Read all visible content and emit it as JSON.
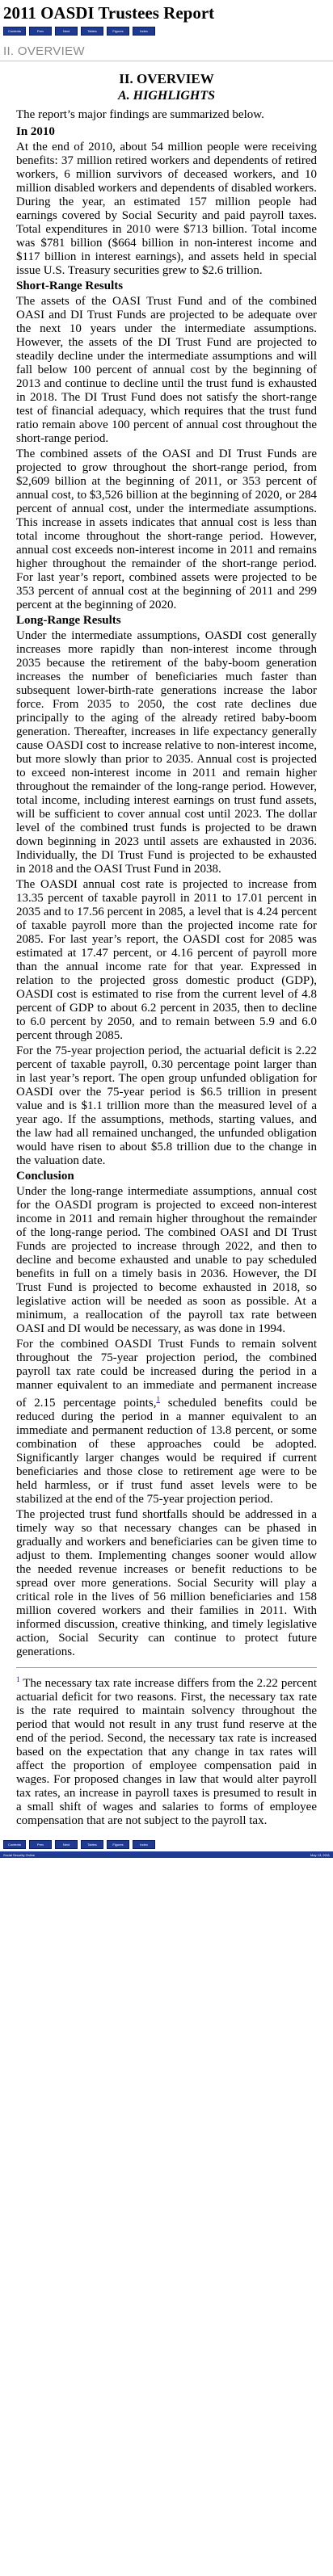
{
  "header": {
    "title": "2011 OASDI Trustees Report",
    "nav": [
      "Contents",
      "Prev",
      "Next",
      "Tables",
      "Figures",
      "Index"
    ]
  },
  "crumb": "II. OVERVIEW",
  "section": {
    "heading": "II. OVERVIEW",
    "subheading": "A. HIGHLIGHTS",
    "intro": "The report’s major findings are summarized below."
  },
  "topics": {
    "in2010": {
      "heading": "In 2010",
      "p1": "At the end of 2010, about 54 million people were receiving benefits: 37 million retired workers and dependents of retired workers, 6 million survivors of deceased workers, and 10 million disabled workers and dependents of disabled workers. During the year, an estimated 157 million people had earnings covered by Social Security and paid payroll taxes. Total expenditures in 2010 were $713 billion. Total income was $781 billion ($664 billion in non-interest income and $117 billion in interest earnings), and assets held in special issue U.S. Treasury securities grew to $2.6 trillion."
    },
    "short": {
      "heading": "Short-Range Results",
      "p1": "The assets of the OASI Trust Fund and of the combined OASI and DI Trust Funds are projected to be adequate over the next 10 years under the intermediate assumptions. However, the assets of the DI Trust Fund are projected to steadily decline under the intermediate assumptions and will fall below 100 percent of annual cost by the beginning of 2013 and continue to decline until the trust fund is exhausted in 2018. The DI Trust Fund does not satisfy the short-range test of financial adequacy, which requires that the trust fund ratio remain above 100 percent of annual cost throughout the short-range period.",
      "p2": "The combined assets of the OASI and DI Trust Funds are projected to grow throughout the short-range period, from $2,609 billion at the beginning of 2011, or 353 percent of annual cost, to $3,526 billion at the beginning of 2020, or 284 percent of annual cost, under the intermediate assumptions. This increase in assets indicates that annual cost is less than total income throughout the short-range period. However, annual cost exceeds non-interest income in 2011 and remains higher throughout the remainder of the short-range period. For last year’s report, combined assets were projected to be 353 percent of annual cost at the beginning of 2011 and 299 percent at the beginning of 2020."
    },
    "long": {
      "heading": "Long-Range Results",
      "p1": "Under the intermediate assumptions, OASDI cost generally increases more rapidly than non-interest income through 2035 because the retirement of the baby-boom generation increases the number of beneficiaries much faster than subsequent lower-birth-rate generations increase the labor force. From 2035 to 2050, the cost rate declines due principally to the aging of the already retired baby-boom generation. Thereafter, increases in life expectancy generally cause OASDI cost to increase relative to non-interest income, but more slowly than prior to 2035. Annual cost is projected to exceed non-interest income in 2011 and remain higher throughout the remainder of the long-range period. However, total income, including interest earnings on trust fund assets, will be sufficient to cover annual cost until 2023. The dollar level of the combined trust funds is projected to be drawn down beginning in 2023 until assets are exhausted in 2036. Individually, the DI Trust Fund is projected to be exhausted in 2018 and the OASI Trust Fund in 2038.",
      "p2": "The OASDI annual cost rate is projected to increase from 13.35 percent of taxable payroll in 2011 to 17.01 percent in 2035 and to 17.56 percent in 2085, a level that is 4.24 percent of taxable payroll more than the projected income rate for 2085. For last year’s report, the OASDI cost for 2085 was estimated at 17.47 percent, or 4.16 percent of payroll more than the annual income rate for that year. Expressed in relation to the projected gross domestic product (GDP), OASDI cost is estimated to rise from the current level of 4.8 percent of GDP to about 6.2 percent in 2035, then to decline to 6.0 percent by 2050, and to remain between 5.9 and 6.0 percent through 2085.",
      "p3": "For the 75-year projection period, the actuarial deficit is 2.22 percent of taxable payroll, 0.30 percentage point larger than in last year’s report. The open group unfunded obligation for OASDI over the 75-year period is $6.5 trillion in present value and is $1.1 trillion more than the measured level of a year ago. If the assumptions, methods, starting values, and the law had all remained unchanged, the unfunded obligation would have risen to about $5.8 trillion due to the change in the valuation date."
    },
    "conclusion": {
      "heading": "Conclusion",
      "p1": "Under the long-range intermediate assumptions, annual cost for the OASDI program is projected to exceed non-interest income in 2011 and remain higher throughout the remainder of the long-range period. The combined OASI and DI Trust Funds are projected to increase through 2022, and then to decline and become exhausted and unable to pay scheduled benefits in full on a timely basis in 2036. However, the DI Trust Fund is projected to become exhausted in 2018, so legislative action will be needed as soon as possible. At a minimum, a reallocation of the payroll tax rate between OASI and DI would be necessary, as was done in 1994.",
      "p2a": "For the combined OASDI Trust Funds to remain solvent throughout the 75-year projection period, the combined payroll tax rate could be increased during the period in a manner equivalent to an immediate and permanent increase of 2.15 percentage points,",
      "fn_ref": "1",
      "p2b": " scheduled benefits could be reduced during the period in a manner equivalent to an immediate and permanent reduction of 13.8 percent, or some combination of these approaches could be adopted. Significantly larger changes would be required if current beneficiaries and those close to retirement age were to be held harmless, or if trust fund asset levels were to be stabilized at the end of the 75-year projection period.",
      "p3": "The projected trust fund shortfalls should be addressed in a timely way so that necessary changes can be phased in gradually and workers and beneficiaries can be given time to adjust to them. Implementing changes sooner would allow the needed revenue increases or benefit reductions to be spread over more generations. Social Security will play a critical role in the lives of 56 million beneficiaries and 158 million covered workers and their families in 2011. With informed discussion, creative thinking, and timely legislative action, Social Security can continue to protect future generations."
    }
  },
  "footnote": {
    "mark": "1",
    "text": "The necessary tax rate increase differs from the 2.22 percent actuarial deficit for two reasons. First, the necessary tax rate is the rate required to maintain solvency throughout the period that would not result in any trust fund reserve at the end of the period. Second, the necessary tax rate is increased based on the expectation that any change in tax rates will affect the proportion of employee compensation paid in wages. For proposed changes in law that would alter payroll tax rates, an increase in payroll taxes is presumed to result in a small shift of wages and salaries to forms of employee compensation that are not subject to the payroll tax."
  },
  "footer": {
    "nav": [
      "Contents",
      "Prev",
      "Next",
      "Tables",
      "Figures",
      "Index"
    ],
    "left": "Social Security Online",
    "right": "May 13, 2011"
  }
}
